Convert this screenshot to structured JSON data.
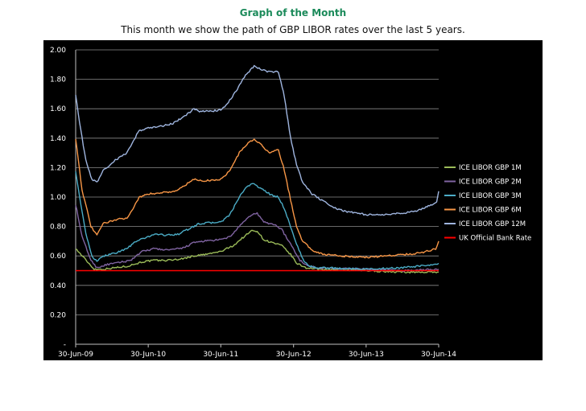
{
  "header": {
    "title": "Graph of the Month",
    "subtitle": "This month we show the path of GBP LIBOR rates over the last 5 years."
  },
  "chart_data": {
    "type": "line",
    "title": "",
    "xlabel": "",
    "ylabel": "",
    "ylim": [
      0,
      2.0
    ],
    "y_ticks": [
      0,
      0.2,
      0.4,
      0.6,
      0.8,
      1.0,
      1.2,
      1.4,
      1.6,
      1.8,
      2.0
    ],
    "y_tick_labels": [
      "-",
      "0.20",
      "0.40",
      "0.60",
      "0.80",
      "1.00",
      "1.20",
      "1.40",
      "1.60",
      "1.80",
      "2.00"
    ],
    "x_range": [
      "2009-06-30",
      "2014-06-30"
    ],
    "x_ticks": [
      "2009-06-30",
      "2010-06-30",
      "2011-06-30",
      "2012-06-30",
      "2013-06-30",
      "2014-06-30"
    ],
    "x_tick_labels": [
      "30-Jun-09",
      "30-Jun-10",
      "30-Jun-11",
      "30-Jun-12",
      "30-Jun-13",
      "30-Jun-14"
    ],
    "background": "#000000",
    "grid": true,
    "legend_position": "right",
    "series": [
      {
        "name": "ICE LIBOR GBP 1M",
        "color": "#9bbb59",
        "points": [
          [
            "2009-06-30",
            0.65
          ],
          [
            "2009-08-15",
            0.58
          ],
          [
            "2009-10-01",
            0.51
          ],
          [
            "2009-11-15",
            0.51
          ],
          [
            "2010-01-15",
            0.52
          ],
          [
            "2010-03-15",
            0.53
          ],
          [
            "2010-06-01",
            0.56
          ],
          [
            "2010-08-01",
            0.57
          ],
          [
            "2010-10-01",
            0.57
          ],
          [
            "2010-12-15",
            0.58
          ],
          [
            "2011-02-15",
            0.6
          ],
          [
            "2011-04-15",
            0.61
          ],
          [
            "2011-06-30",
            0.63
          ],
          [
            "2011-09-01",
            0.67
          ],
          [
            "2011-10-15",
            0.72
          ],
          [
            "2011-12-01",
            0.77
          ],
          [
            "2011-12-30",
            0.77
          ],
          [
            "2012-02-01",
            0.71
          ],
          [
            "2012-03-15",
            0.69
          ],
          [
            "2012-05-01",
            0.67
          ],
          [
            "2012-06-15",
            0.61
          ],
          [
            "2012-07-15",
            0.55
          ],
          [
            "2012-09-01",
            0.52
          ],
          [
            "2012-11-01",
            0.51
          ],
          [
            "2013-06-30",
            0.5
          ],
          [
            "2014-01-01",
            0.49
          ],
          [
            "2014-06-30",
            0.49
          ]
        ]
      },
      {
        "name": "ICE LIBOR GBP 2M",
        "color": "#8064a2",
        "points": [
          [
            "2009-06-30",
            0.95
          ],
          [
            "2009-08-01",
            0.73
          ],
          [
            "2009-09-15",
            0.57
          ],
          [
            "2009-10-15",
            0.52
          ],
          [
            "2009-12-01",
            0.54
          ],
          [
            "2010-01-15",
            0.55
          ],
          [
            "2010-04-01",
            0.57
          ],
          [
            "2010-06-01",
            0.63
          ],
          [
            "2010-08-01",
            0.65
          ],
          [
            "2010-10-01",
            0.64
          ],
          [
            "2010-12-15",
            0.65
          ],
          [
            "2011-02-15",
            0.69
          ],
          [
            "2011-04-01",
            0.7
          ],
          [
            "2011-06-30",
            0.71
          ],
          [
            "2011-08-15",
            0.73
          ],
          [
            "2011-10-01",
            0.8
          ],
          [
            "2011-12-01",
            0.88
          ],
          [
            "2011-12-30",
            0.89
          ],
          [
            "2012-02-01",
            0.83
          ],
          [
            "2012-04-01",
            0.81
          ],
          [
            "2012-05-01",
            0.78
          ],
          [
            "2012-06-15",
            0.68
          ],
          [
            "2012-08-01",
            0.57
          ],
          [
            "2012-09-15",
            0.53
          ],
          [
            "2012-11-01",
            0.52
          ],
          [
            "2013-06-30",
            0.51
          ],
          [
            "2014-01-01",
            0.5
          ],
          [
            "2014-06-30",
            0.51
          ]
        ]
      },
      {
        "name": "ICE LIBOR GBP 3M",
        "color": "#4bacc6",
        "points": [
          [
            "2009-06-30",
            1.18
          ],
          [
            "2009-07-20",
            1.0
          ],
          [
            "2009-08-20",
            0.75
          ],
          [
            "2009-09-20",
            0.6
          ],
          [
            "2009-10-15",
            0.56
          ],
          [
            "2009-11-15",
            0.6
          ],
          [
            "2010-01-15",
            0.62
          ],
          [
            "2010-03-15",
            0.65
          ],
          [
            "2010-05-01",
            0.7
          ],
          [
            "2010-06-30",
            0.73
          ],
          [
            "2010-08-01",
            0.75
          ],
          [
            "2010-10-01",
            0.74
          ],
          [
            "2010-12-01",
            0.75
          ],
          [
            "2011-01-15",
            0.78
          ],
          [
            "2011-03-15",
            0.82
          ],
          [
            "2011-06-30",
            0.83
          ],
          [
            "2011-08-15",
            0.88
          ],
          [
            "2011-10-01",
            1.0
          ],
          [
            "2011-11-15",
            1.08
          ],
          [
            "2011-12-15",
            1.09
          ],
          [
            "2012-01-15",
            1.06
          ],
          [
            "2012-03-15",
            1.01
          ],
          [
            "2012-04-15",
            1.0
          ],
          [
            "2012-05-15",
            0.92
          ],
          [
            "2012-06-15",
            0.8
          ],
          [
            "2012-07-15",
            0.68
          ],
          [
            "2012-08-15",
            0.58
          ],
          [
            "2012-09-15",
            0.53
          ],
          [
            "2012-11-01",
            0.52
          ],
          [
            "2013-06-30",
            0.51
          ],
          [
            "2014-01-01",
            0.52
          ],
          [
            "2014-06-15",
            0.54
          ],
          [
            "2014-06-30",
            0.55
          ]
        ]
      },
      {
        "name": "ICE LIBOR GBP 6M",
        "color": "#f79646",
        "points": [
          [
            "2009-06-30",
            1.4
          ],
          [
            "2009-08-01",
            1.05
          ],
          [
            "2009-09-15",
            0.8
          ],
          [
            "2009-10-15",
            0.74
          ],
          [
            "2009-11-15",
            0.82
          ],
          [
            "2010-01-01",
            0.84
          ],
          [
            "2010-03-15",
            0.86
          ],
          [
            "2010-04-15",
            0.92
          ],
          [
            "2010-05-15",
            1.0
          ],
          [
            "2010-06-30",
            1.02
          ],
          [
            "2010-09-01",
            1.03
          ],
          [
            "2010-11-15",
            1.04
          ],
          [
            "2011-01-01",
            1.08
          ],
          [
            "2011-02-15",
            1.12
          ],
          [
            "2011-04-01",
            1.11
          ],
          [
            "2011-06-30",
            1.12
          ],
          [
            "2011-08-15",
            1.18
          ],
          [
            "2011-10-01",
            1.3
          ],
          [
            "2011-11-15",
            1.37
          ],
          [
            "2011-12-15",
            1.39
          ],
          [
            "2012-01-15",
            1.36
          ],
          [
            "2012-03-01",
            1.3
          ],
          [
            "2012-04-15",
            1.32
          ],
          [
            "2012-05-15",
            1.18
          ],
          [
            "2012-06-15",
            0.98
          ],
          [
            "2012-07-15",
            0.8
          ],
          [
            "2012-08-15",
            0.7
          ],
          [
            "2012-10-01",
            0.64
          ],
          [
            "2012-12-01",
            0.61
          ],
          [
            "2013-03-01",
            0.6
          ],
          [
            "2013-06-30",
            0.59
          ],
          [
            "2013-10-01",
            0.6
          ],
          [
            "2014-01-01",
            0.61
          ],
          [
            "2014-04-01",
            0.62
          ],
          [
            "2014-06-15",
            0.65
          ],
          [
            "2014-06-30",
            0.7
          ]
        ]
      },
      {
        "name": "ICE LIBOR GBP 12M",
        "color": "#9fb5df",
        "points": [
          [
            "2009-06-30",
            1.7
          ],
          [
            "2009-07-20",
            1.5
          ],
          [
            "2009-08-20",
            1.25
          ],
          [
            "2009-09-20",
            1.12
          ],
          [
            "2009-10-15",
            1.1
          ],
          [
            "2009-11-15",
            1.18
          ],
          [
            "2010-01-15",
            1.25
          ],
          [
            "2010-03-15",
            1.3
          ],
          [
            "2010-04-15",
            1.38
          ],
          [
            "2010-05-15",
            1.45
          ],
          [
            "2010-06-30",
            1.47
          ],
          [
            "2010-09-01",
            1.48
          ],
          [
            "2010-11-01",
            1.5
          ],
          [
            "2011-01-01",
            1.55
          ],
          [
            "2011-02-15",
            1.6
          ],
          [
            "2011-03-15",
            1.58
          ],
          [
            "2011-06-30",
            1.59
          ],
          [
            "2011-08-01",
            1.63
          ],
          [
            "2011-09-15",
            1.72
          ],
          [
            "2011-11-01",
            1.83
          ],
          [
            "2011-12-15",
            1.89
          ],
          [
            "2012-01-15",
            1.87
          ],
          [
            "2012-03-01",
            1.85
          ],
          [
            "2012-04-15",
            1.85
          ],
          [
            "2012-05-15",
            1.68
          ],
          [
            "2012-06-15",
            1.4
          ],
          [
            "2012-07-15",
            1.22
          ],
          [
            "2012-08-15",
            1.1
          ],
          [
            "2012-10-01",
            1.02
          ],
          [
            "2012-12-01",
            0.97
          ],
          [
            "2013-02-01",
            0.92
          ],
          [
            "2013-04-01",
            0.9
          ],
          [
            "2013-06-30",
            0.88
          ],
          [
            "2013-10-01",
            0.88
          ],
          [
            "2014-01-01",
            0.89
          ],
          [
            "2014-03-15",
            0.91
          ],
          [
            "2014-05-15",
            0.94
          ],
          [
            "2014-06-20",
            0.97
          ],
          [
            "2014-06-30",
            1.04
          ]
        ]
      },
      {
        "name": "UK Official Bank Rate",
        "color": "#ff0000",
        "points": [
          [
            "2009-06-30",
            0.5
          ],
          [
            "2014-06-30",
            0.5
          ]
        ]
      }
    ]
  }
}
